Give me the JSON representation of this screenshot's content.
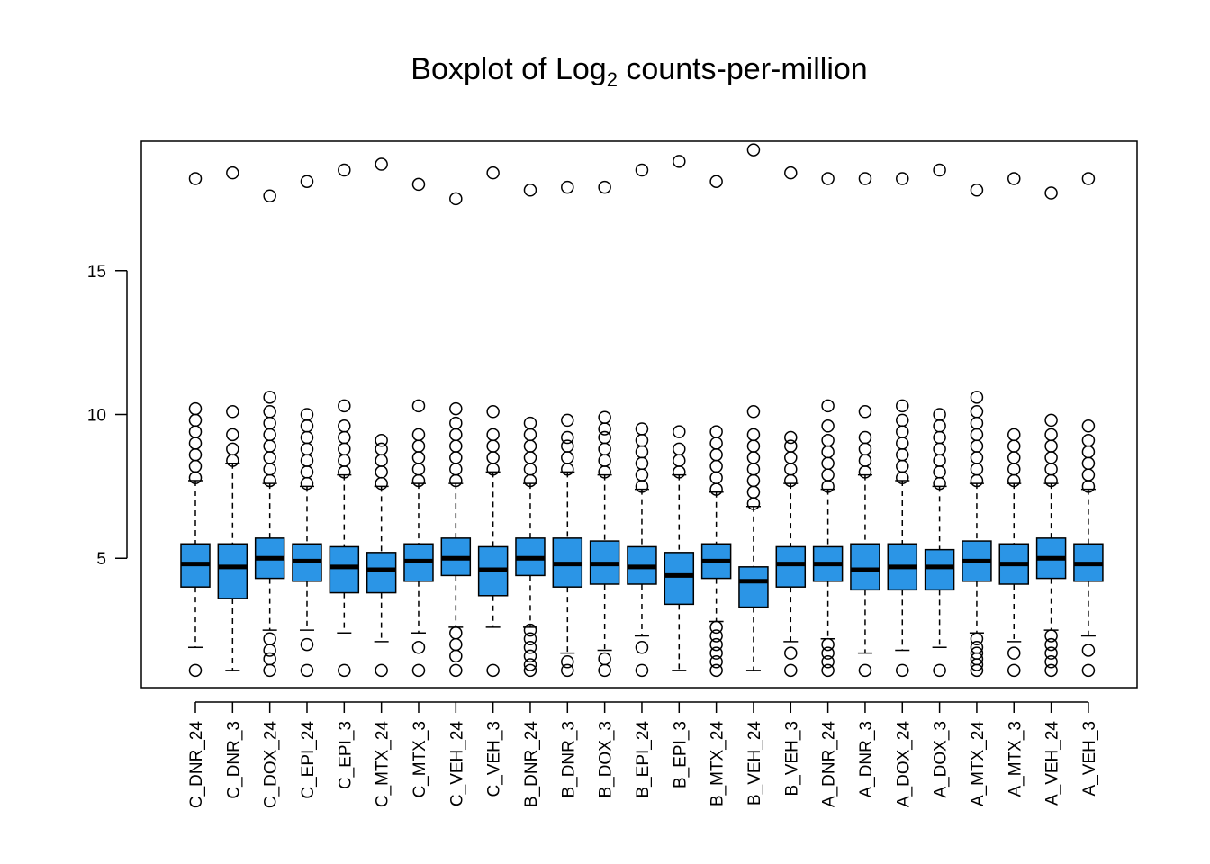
{
  "chart_data": {
    "type": "boxplot",
    "title": "Boxplot of Log",
    "title_subscript": "2",
    "title_suffix": " counts-per-million",
    "xlabel": "",
    "ylabel": "",
    "ylim": [
      0.5,
      19.5
    ],
    "yticks": [
      5,
      10,
      15
    ],
    "box_color": "#2b95e6",
    "categories": [
      "C_DNR_24",
      "C_DNR_3",
      "C_DOX_24",
      "C_EPI_24",
      "C_EPI_3",
      "C_MTX_24",
      "C_MTX_3",
      "C_VEH_24",
      "C_VEH_3",
      "B_DNR_24",
      "B_DNR_3",
      "B_DOX_3",
      "B_EPI_24",
      "B_EPI_3",
      "B_MTX_24",
      "B_VEH_24",
      "B_VEH_3",
      "A_DNR_24",
      "A_DNR_3",
      "A_DOX_24",
      "A_DOX_3",
      "A_MTX_24",
      "A_MTX_3",
      "A_VEH_24",
      "A_VEH_3"
    ],
    "boxes": [
      {
        "low": 1.9,
        "q1": 4.0,
        "median": 4.8,
        "q3": 5.5,
        "high": 7.7,
        "outliers_high": [
          7.8,
          8.2,
          8.6,
          9.0,
          9.4,
          9.8,
          10.2
        ],
        "outliers_low": [
          1.1
        ],
        "top": 18.2
      },
      {
        "low": 1.1,
        "q1": 3.6,
        "median": 4.7,
        "q3": 5.5,
        "high": 8.3,
        "outliers_high": [
          8.4,
          8.8,
          9.3,
          10.1
        ],
        "outliers_low": [],
        "top": 18.4
      },
      {
        "low": 2.5,
        "q1": 4.3,
        "median": 5.0,
        "q3": 5.7,
        "high": 7.6,
        "outliers_high": [
          7.7,
          8.1,
          8.5,
          8.9,
          9.3,
          9.7,
          10.1,
          10.6
        ],
        "outliers_low": [
          2.2,
          1.8,
          1.5,
          1.1
        ],
        "top": 17.6
      },
      {
        "low": 2.5,
        "q1": 4.2,
        "median": 4.9,
        "q3": 5.5,
        "high": 7.5,
        "outliers_high": [
          7.6,
          8.0,
          8.4,
          8.8,
          9.2,
          9.6,
          10.0
        ],
        "outliers_low": [
          2.0,
          1.1
        ],
        "top": 18.1
      },
      {
        "low": 2.4,
        "q1": 3.8,
        "median": 4.7,
        "q3": 5.4,
        "high": 7.9,
        "outliers_high": [
          8.0,
          8.4,
          8.8,
          9.2,
          9.6,
          10.3
        ],
        "outliers_low": [
          1.1
        ],
        "top": 18.5
      },
      {
        "low": 2.1,
        "q1": 3.8,
        "median": 4.6,
        "q3": 5.2,
        "high": 7.5,
        "outliers_high": [
          7.6,
          8.0,
          8.4,
          8.8,
          9.1
        ],
        "outliers_low": [
          1.1
        ],
        "top": 18.7
      },
      {
        "low": 2.4,
        "q1": 4.2,
        "median": 4.9,
        "q3": 5.5,
        "high": 7.6,
        "outliers_high": [
          7.7,
          8.1,
          8.5,
          8.9,
          9.3,
          10.3
        ],
        "outliers_low": [
          1.9,
          1.1
        ],
        "top": 18.0
      },
      {
        "low": 2.6,
        "q1": 4.4,
        "median": 5.0,
        "q3": 5.7,
        "high": 7.6,
        "outliers_high": [
          7.7,
          8.1,
          8.5,
          8.9,
          9.3,
          9.7,
          10.2
        ],
        "outliers_low": [
          2.4,
          2.0,
          1.6,
          1.1
        ],
        "top": 17.5
      },
      {
        "low": 2.6,
        "q1": 3.7,
        "median": 4.6,
        "q3": 5.4,
        "high": 8.0,
        "outliers_high": [
          8.1,
          8.5,
          8.9,
          9.3,
          10.1
        ],
        "outliers_low": [
          1.1
        ],
        "top": 18.4
      },
      {
        "low": 2.6,
        "q1": 4.4,
        "median": 5.0,
        "q3": 5.7,
        "high": 7.6,
        "outliers_high": [
          7.7,
          8.1,
          8.5,
          8.9,
          9.3,
          9.7
        ],
        "outliers_low": [
          2.5,
          2.2,
          1.9,
          1.6,
          1.3,
          1.1
        ],
        "top": 17.8
      },
      {
        "low": 1.7,
        "q1": 4.0,
        "median": 4.8,
        "q3": 5.7,
        "high": 8.0,
        "outliers_high": [
          8.1,
          8.5,
          8.9,
          9.2,
          9.8
        ],
        "outliers_low": [
          1.4,
          1.1
        ],
        "top": 17.9
      },
      {
        "low": 1.8,
        "q1": 4.1,
        "median": 4.8,
        "q3": 5.6,
        "high": 7.9,
        "outliers_high": [
          8.0,
          8.4,
          8.8,
          9.2,
          9.5,
          9.9
        ],
        "outliers_low": [
          1.5,
          1.1
        ],
        "top": 17.9
      },
      {
        "low": 2.3,
        "q1": 4.1,
        "median": 4.7,
        "q3": 5.4,
        "high": 7.4,
        "outliers_high": [
          7.5,
          7.9,
          8.3,
          8.7,
          9.1,
          9.5
        ],
        "outliers_low": [
          1.9,
          1.1
        ],
        "top": 18.5
      },
      {
        "low": 1.1,
        "q1": 3.4,
        "median": 4.4,
        "q3": 5.2,
        "high": 7.9,
        "outliers_high": [
          8.0,
          8.4,
          8.8,
          9.4
        ],
        "outliers_low": [],
        "top": 18.8
      },
      {
        "low": 2.8,
        "q1": 4.3,
        "median": 4.9,
        "q3": 5.5,
        "high": 7.3,
        "outliers_high": [
          7.4,
          7.8,
          8.2,
          8.6,
          9.0,
          9.4
        ],
        "outliers_low": [
          2.6,
          2.3,
          2.0,
          1.7,
          1.4,
          1.1
        ],
        "top": 18.1
      },
      {
        "low": 1.1,
        "q1": 3.3,
        "median": 4.2,
        "q3": 4.7,
        "high": 6.8,
        "outliers_high": [
          6.9,
          7.3,
          7.7,
          8.1,
          8.5,
          8.9,
          9.3,
          10.1
        ],
        "outliers_low": [],
        "top": 19.2
      },
      {
        "low": 2.1,
        "q1": 4.0,
        "median": 4.8,
        "q3": 5.4,
        "high": 7.6,
        "outliers_high": [
          7.7,
          8.1,
          8.5,
          8.9,
          9.2
        ],
        "outliers_low": [
          1.7,
          1.1
        ],
        "top": 18.4
      },
      {
        "low": 2.2,
        "q1": 4.2,
        "median": 4.8,
        "q3": 5.4,
        "high": 7.4,
        "outliers_high": [
          7.5,
          7.9,
          8.3,
          8.7,
          9.1,
          9.6,
          10.3
        ],
        "outliers_low": [
          2.0,
          1.7,
          1.4,
          1.1
        ],
        "top": 18.2
      },
      {
        "low": 1.7,
        "q1": 3.9,
        "median": 4.6,
        "q3": 5.5,
        "high": 7.9,
        "outliers_high": [
          8.0,
          8.4,
          8.8,
          9.2,
          10.1
        ],
        "outliers_low": [
          1.1
        ],
        "top": 18.2
      },
      {
        "low": 1.8,
        "q1": 3.9,
        "median": 4.7,
        "q3": 5.5,
        "high": 7.7,
        "outliers_high": [
          7.8,
          8.2,
          8.6,
          9.0,
          9.4,
          9.8,
          10.3
        ],
        "outliers_low": [
          1.1
        ],
        "top": 18.2
      },
      {
        "low": 1.9,
        "q1": 3.9,
        "median": 4.7,
        "q3": 5.3,
        "high": 7.5,
        "outliers_high": [
          7.6,
          8.0,
          8.4,
          8.8,
          9.2,
          9.6,
          10.0
        ],
        "outliers_low": [
          1.1
        ],
        "top": 18.5
      },
      {
        "low": 2.4,
        "q1": 4.2,
        "median": 4.9,
        "q3": 5.6,
        "high": 7.6,
        "outliers_high": [
          7.7,
          8.1,
          8.5,
          8.9,
          9.3,
          9.7,
          10.1,
          10.6
        ],
        "outliers_low": [
          2.2,
          1.9,
          1.7,
          1.5,
          1.3,
          1.1
        ],
        "top": 17.8
      },
      {
        "low": 2.1,
        "q1": 4.1,
        "median": 4.8,
        "q3": 5.5,
        "high": 7.6,
        "outliers_high": [
          7.7,
          8.1,
          8.5,
          8.9,
          9.3
        ],
        "outliers_low": [
          1.7,
          1.1
        ],
        "top": 18.2
      },
      {
        "low": 2.5,
        "q1": 4.3,
        "median": 5.0,
        "q3": 5.7,
        "high": 7.6,
        "outliers_high": [
          7.7,
          8.1,
          8.5,
          8.9,
          9.3,
          9.8
        ],
        "outliers_low": [
          2.3,
          2.0,
          1.7,
          1.4,
          1.1
        ],
        "top": 17.7
      },
      {
        "low": 2.3,
        "q1": 4.2,
        "median": 4.8,
        "q3": 5.5,
        "high": 7.4,
        "outliers_high": [
          7.5,
          7.9,
          8.3,
          8.7,
          9.1,
          9.6
        ],
        "outliers_low": [
          1.8,
          1.1
        ],
        "top": 18.2
      }
    ]
  }
}
